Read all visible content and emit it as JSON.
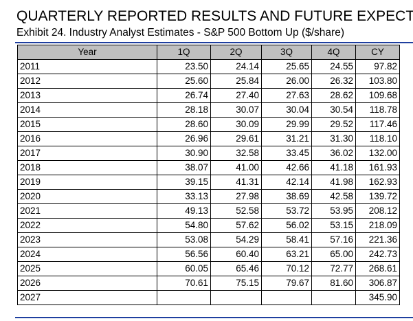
{
  "header": {
    "title": "QUARTERLY REPORTED RESULTS AND FUTURE EXPECTAT",
    "subtitle": "Exhibit 24. Industry Analyst Estimates - S&P 500 Bottom Up ($/share)"
  },
  "table": {
    "columns": [
      "Year",
      "1Q",
      "2Q",
      "3Q",
      "4Q",
      "CY"
    ],
    "rows": [
      [
        "2011",
        "23.50",
        "24.14",
        "25.65",
        "24.55",
        "97.82"
      ],
      [
        "2012",
        "25.60",
        "25.84",
        "26.00",
        "26.32",
        "103.80"
      ],
      [
        "2013",
        "26.74",
        "27.40",
        "27.63",
        "28.62",
        "109.68"
      ],
      [
        "2014",
        "28.18",
        "30.07",
        "30.04",
        "30.54",
        "118.78"
      ],
      [
        "2015",
        "28.60",
        "30.09",
        "29.99",
        "29.52",
        "117.46"
      ],
      [
        "2016",
        "26.96",
        "29.61",
        "31.21",
        "31.30",
        "118.10"
      ],
      [
        "2017",
        "30.90",
        "32.58",
        "33.45",
        "36.02",
        "132.00"
      ],
      [
        "2018",
        "38.07",
        "41.00",
        "42.66",
        "41.18",
        "161.93"
      ],
      [
        "2019",
        "39.15",
        "41.31",
        "42.14",
        "41.98",
        "162.93"
      ],
      [
        "2020",
        "33.13",
        "27.98",
        "38.69",
        "42.58",
        "139.72"
      ],
      [
        "2021",
        "49.13",
        "52.58",
        "53.72",
        "53.95",
        "208.12"
      ],
      [
        "2022",
        "54.80",
        "57.62",
        "56.02",
        "53.15",
        "218.09"
      ],
      [
        "2023",
        "53.08",
        "54.29",
        "58.41",
        "57.16",
        "221.36"
      ],
      [
        "2024",
        "56.56",
        "60.40",
        "63.21",
        "65.00",
        "242.73"
      ],
      [
        "2025",
        "60.05",
        "65.46",
        "70.12",
        "72.77",
        "268.61"
      ],
      [
        "2026",
        "70.61",
        "75.15",
        "79.67",
        "81.60",
        "306.87"
      ],
      [
        "2027",
        null,
        null,
        null,
        null,
        "345.90"
      ]
    ]
  }
}
